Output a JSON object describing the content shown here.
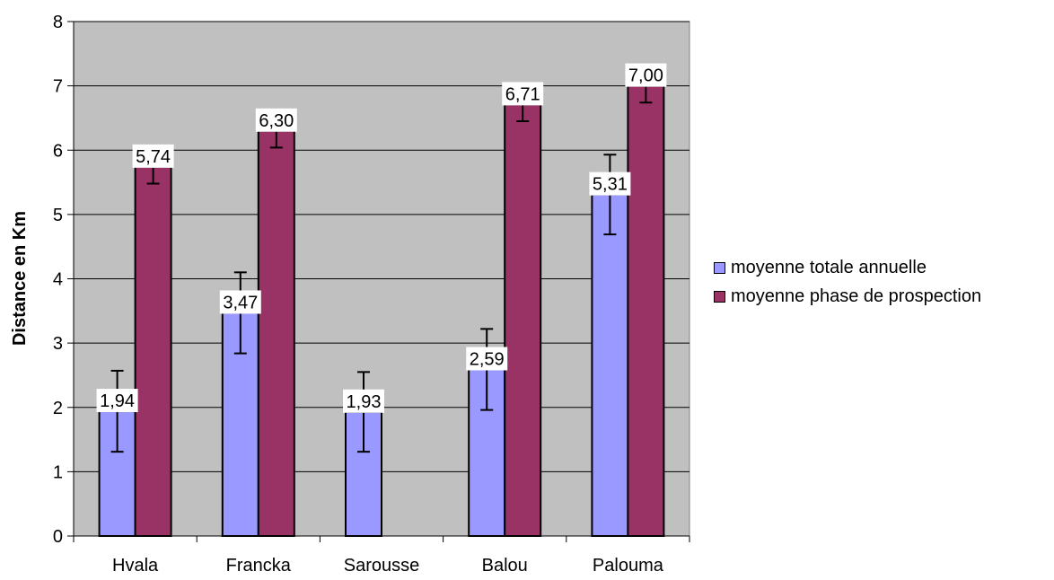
{
  "chart_data": {
    "type": "bar",
    "title": "",
    "xlabel": "",
    "ylabel": "Distance en Km",
    "ylim": [
      0,
      8
    ],
    "yticks": [
      "0",
      "1",
      "2",
      "3",
      "4",
      "5",
      "6",
      "7",
      "8"
    ],
    "grid": true,
    "legend_position": "right",
    "categories": [
      "Hvala",
      "Francka",
      "Sarousse",
      "Balou",
      "Palouma"
    ],
    "series": [
      {
        "name": "moyenne totale annuelle",
        "color": "#9999ff",
        "values": [
          1.94,
          3.47,
          1.93,
          2.59,
          5.31
        ],
        "labels": [
          "1,94",
          "3,47",
          "1,93",
          "2,59",
          "5,31"
        ],
        "error": [
          0.63,
          0.63,
          0.62,
          0.63,
          0.62
        ]
      },
      {
        "name": "moyenne phase de prospection",
        "color": "#993366",
        "values": [
          5.74,
          6.3,
          null,
          6.71,
          7.0
        ],
        "labels": [
          "5,74",
          "6,30",
          "",
          "6,71",
          "7,00"
        ],
        "error": [
          0.26,
          0.26,
          null,
          0.26,
          0.26
        ]
      }
    ]
  },
  "style": {
    "plot_background": "#c0c0c0",
    "grid_color": "#000000"
  }
}
